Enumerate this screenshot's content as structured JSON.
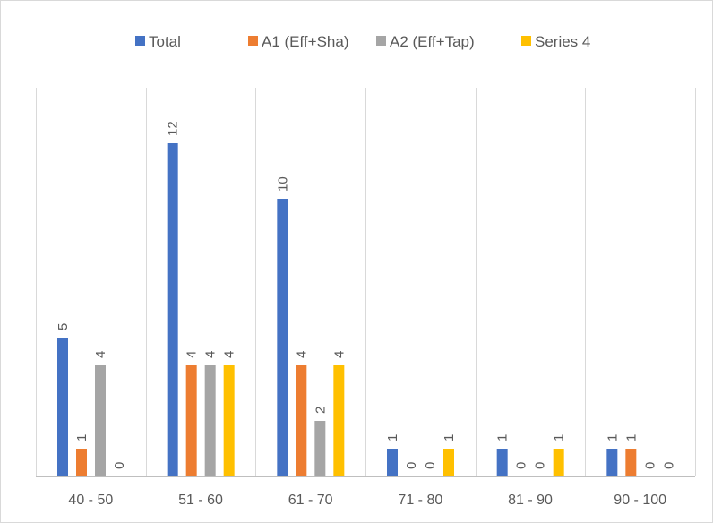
{
  "chart_data": {
    "type": "bar",
    "categories": [
      "40 - 50",
      "51 - 60",
      "61 - 70",
      "71 - 80",
      "81 - 90",
      "90 - 100"
    ],
    "series": [
      {
        "name": "Total",
        "color": "#4472C4",
        "values": [
          5,
          12,
          10,
          1,
          1,
          1
        ]
      },
      {
        "name": "A1 (Eff+Sha)",
        "color": "#ED7D31",
        "values": [
          1,
          4,
          4,
          0,
          0,
          1
        ]
      },
      {
        "name": "A2 (Eff+Tap)",
        "color": "#A5A5A5",
        "values": [
          4,
          4,
          2,
          0,
          0,
          0
        ]
      },
      {
        "name": "Series 4",
        "color": "#FFC000",
        "values": [
          0,
          4,
          4,
          1,
          1,
          0
        ]
      }
    ],
    "data_labels": [
      [
        "5",
        "1",
        "4",
        "0"
      ],
      [
        "12",
        "4",
        "4",
        "4"
      ],
      [
        "10",
        "4",
        "2",
        "4"
      ],
      [
        "1",
        "0",
        "0",
        "1"
      ],
      [
        "1",
        "0",
        "0",
        "1"
      ],
      [
        "1",
        "1",
        "0",
        "0"
      ]
    ],
    "ylim": [
      0,
      14
    ],
    "legend_position": "top",
    "grid": "vertical category separators",
    "title": "",
    "xlabel": "",
    "ylabel": ""
  }
}
